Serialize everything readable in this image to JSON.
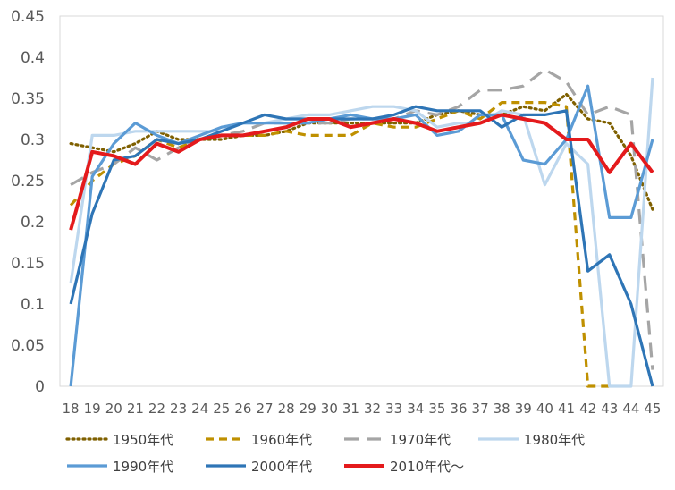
{
  "chart_data": {
    "type": "line",
    "title": "",
    "xlabel": "",
    "ylabel": "",
    "ylim": [
      0,
      0.45
    ],
    "yticks": [
      "0",
      "0.05",
      "0.1",
      "0.15",
      "0.2",
      "0.25",
      "0.3",
      "0.35",
      "0.4",
      "0.45"
    ],
    "grid": false,
    "legend_position": "bottom",
    "x": [
      18,
      19,
      20,
      21,
      22,
      23,
      24,
      25,
      26,
      27,
      28,
      29,
      30,
      31,
      32,
      33,
      34,
      35,
      36,
      37,
      38,
      39,
      40,
      41,
      42,
      43,
      44,
      45
    ],
    "series": [
      {
        "name": "1950年代",
        "color": "#7F6000",
        "dash": "dotted",
        "values": [
          0.295,
          0.29,
          0.285,
          0.295,
          0.31,
          0.3,
          0.3,
          0.3,
          0.305,
          0.305,
          0.31,
          0.32,
          0.32,
          0.32,
          0.32,
          0.32,
          0.32,
          0.33,
          0.335,
          0.33,
          0.33,
          0.34,
          0.335,
          0.355,
          0.325,
          0.32,
          0.28,
          0.215
        ]
      },
      {
        "name": "1960年代",
        "color": "#BF9000",
        "dash": "dashed",
        "values": [
          0.22,
          0.25,
          0.27,
          0.28,
          0.3,
          0.29,
          0.3,
          0.305,
          0.305,
          0.305,
          0.31,
          0.305,
          0.305,
          0.305,
          0.32,
          0.315,
          0.315,
          0.325,
          0.335,
          0.325,
          0.345,
          0.345,
          0.345,
          0.34,
          0.0,
          0.0,
          null,
          null
        ]
      },
      {
        "name": "1970年代",
        "color": "#A5A5A5",
        "dash": "longdash",
        "values": [
          0.245,
          0.26,
          0.27,
          0.29,
          0.275,
          0.29,
          0.3,
          0.305,
          0.31,
          0.32,
          0.32,
          0.32,
          0.32,
          0.325,
          0.325,
          0.325,
          0.335,
          0.33,
          0.34,
          0.36,
          0.36,
          0.365,
          0.385,
          0.37,
          0.33,
          0.34,
          0.33,
          0.02
        ]
      },
      {
        "name": "1980年代",
        "color": "#BDD7EE",
        "dash": "solid",
        "values": [
          0.125,
          0.305,
          0.305,
          0.31,
          0.31,
          0.31,
          0.31,
          0.31,
          0.32,
          0.32,
          0.325,
          0.33,
          0.33,
          0.335,
          0.34,
          0.34,
          0.335,
          0.315,
          0.32,
          0.32,
          0.335,
          0.33,
          0.245,
          0.295,
          0.27,
          0.0,
          0.0,
          0.375
        ]
      },
      {
        "name": "1990年代",
        "color": "#5B9BD5",
        "dash": "solid",
        "values": [
          0.0,
          0.255,
          0.295,
          0.32,
          0.305,
          0.295,
          0.305,
          0.315,
          0.32,
          0.32,
          0.32,
          0.32,
          0.325,
          0.33,
          0.325,
          0.325,
          0.33,
          0.305,
          0.31,
          0.33,
          0.33,
          0.275,
          0.27,
          0.3,
          0.365,
          0.205,
          0.205,
          0.3
        ]
      },
      {
        "name": "2000年代",
        "color": "#2E75B6",
        "dash": "solid",
        "values": [
          0.1,
          0.21,
          0.275,
          0.28,
          0.3,
          0.295,
          0.3,
          0.31,
          0.32,
          0.33,
          0.325,
          0.325,
          0.325,
          0.325,
          0.325,
          0.33,
          0.34,
          0.335,
          0.335,
          0.335,
          0.315,
          0.33,
          0.33,
          0.335,
          0.14,
          0.16,
          0.1,
          0.0
        ]
      },
      {
        "name": "2010年代～",
        "color": "#E41A1C",
        "dash": "solid",
        "values": [
          0.19,
          0.285,
          0.28,
          0.27,
          0.295,
          0.285,
          0.3,
          0.305,
          0.305,
          0.31,
          0.315,
          0.325,
          0.325,
          0.315,
          0.32,
          0.325,
          0.32,
          0.31,
          0.315,
          0.32,
          0.33,
          0.325,
          0.32,
          0.3,
          0.3,
          0.26,
          0.295,
          0.26
        ]
      }
    ]
  }
}
